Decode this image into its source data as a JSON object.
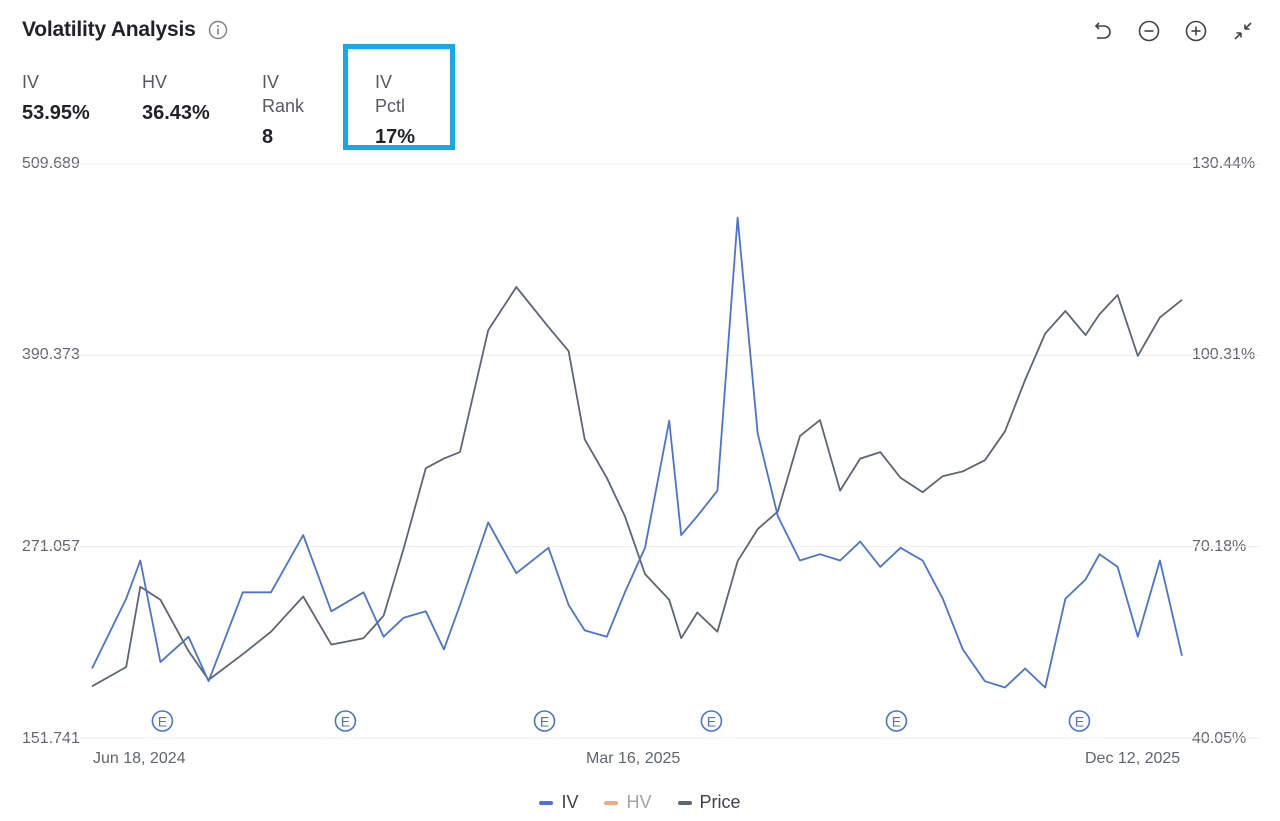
{
  "header": {
    "title": "Volatility Analysis",
    "info_icon": "info-icon",
    "tools": [
      {
        "icon": "undo-icon"
      },
      {
        "icon": "zoom-out-icon"
      },
      {
        "icon": "zoom-in-icon"
      },
      {
        "icon": "collapse-icon"
      }
    ]
  },
  "stats": [
    {
      "label": "IV",
      "value": "53.95%"
    },
    {
      "label": "HV",
      "value": "36.43%"
    },
    {
      "label": "IV Rank",
      "value": "8"
    },
    {
      "label": "IV Pctl",
      "value": "17%"
    }
  ],
  "colors": {
    "iv": "#4a72d9",
    "hv": "#f2a97e",
    "price": "#5d6675",
    "grid": "#ececec",
    "highlight": "#17a8e8"
  },
  "chart_data": {
    "type": "line",
    "left_axis": {
      "name": "Price",
      "ticks": [
        "509.689",
        "390.373",
        "271.057",
        "151.741"
      ],
      "range": [
        151.741,
        509.689
      ]
    },
    "right_axis": {
      "name": "IV",
      "ticks": [
        "130.44%",
        "100.31%",
        "70.18%",
        "40.05%"
      ],
      "range": [
        40.05,
        130.44
      ]
    },
    "x_ticks": [
      "Jun 18, 2024",
      "Mar 16, 2025",
      "Dec 12, 2025"
    ],
    "x_range": [
      "2024-06-18",
      "2025-12-12"
    ],
    "earnings_marker": "E",
    "earnings_dates": [
      "2024-07-23",
      "2024-10-22",
      "2025-01-29",
      "2025-04-22",
      "2025-07-23",
      "2025-10-22"
    ],
    "legend": [
      {
        "name": "IV",
        "color": "#4a72d9",
        "active": true
      },
      {
        "name": "HV",
        "color": "#f2a97e",
        "active": false
      },
      {
        "name": "Price",
        "color": "#5d6675",
        "active": true
      }
    ],
    "series": [
      {
        "name": "Price",
        "axis": "left",
        "x": [
          "2024-06-18",
          "2024-07-05",
          "2024-07-12",
          "2024-07-22",
          "2024-08-05",
          "2024-08-15",
          "2024-09-01",
          "2024-09-15",
          "2024-10-01",
          "2024-10-15",
          "2024-10-31",
          "2024-11-10",
          "2024-11-20",
          "2024-12-01",
          "2024-12-10",
          "2024-12-18",
          "2025-01-01",
          "2025-01-15",
          "2025-01-31",
          "2025-02-10",
          "2025-02-18",
          "2025-03-01",
          "2025-03-10",
          "2025-03-20",
          "2025-04-01",
          "2025-04-07",
          "2025-04-15",
          "2025-04-25",
          "2025-05-05",
          "2025-05-15",
          "2025-05-25",
          "2025-06-05",
          "2025-06-15",
          "2025-06-25",
          "2025-07-05",
          "2025-07-15",
          "2025-07-25",
          "2025-08-05",
          "2025-08-15",
          "2025-08-25",
          "2025-09-05",
          "2025-09-15",
          "2025-09-25",
          "2025-10-05",
          "2025-10-15",
          "2025-10-25",
          "2025-11-01",
          "2025-11-10",
          "2025-11-20",
          "2025-12-01",
          "2025-12-12"
        ],
        "values": [
          184,
          196,
          246,
          238,
          206,
          188,
          204,
          218,
          240,
          210,
          214,
          228,
          270,
          320,
          326,
          330,
          406,
          433,
          408,
          393,
          338,
          314,
          290,
          254,
          238,
          214,
          230,
          218,
          262,
          282,
          293,
          340,
          350,
          306,
          326,
          330,
          314,
          305,
          315,
          318,
          325,
          343,
          375,
          404,
          418,
          403,
          416,
          428,
          390,
          414,
          425
        ]
      },
      {
        "name": "IV",
        "axis": "right",
        "x": [
          "2024-06-18",
          "2024-07-05",
          "2024-07-12",
          "2024-07-22",
          "2024-08-05",
          "2024-08-15",
          "2024-09-01",
          "2024-09-15",
          "2024-10-01",
          "2024-10-15",
          "2024-10-31",
          "2024-11-10",
          "2024-11-20",
          "2024-12-01",
          "2024-12-10",
          "2024-12-18",
          "2025-01-01",
          "2025-01-15",
          "2025-01-31",
          "2025-02-10",
          "2025-02-18",
          "2025-03-01",
          "2025-03-10",
          "2025-03-20",
          "2025-04-01",
          "2025-04-07",
          "2025-04-15",
          "2025-04-25",
          "2025-05-05",
          "2025-05-15",
          "2025-05-25",
          "2025-06-05",
          "2025-06-15",
          "2025-06-25",
          "2025-07-05",
          "2025-07-15",
          "2025-07-25",
          "2025-08-05",
          "2025-08-15",
          "2025-08-25",
          "2025-09-05",
          "2025-09-15",
          "2025-09-25",
          "2025-10-05",
          "2025-10-15",
          "2025-10-25",
          "2025-11-01",
          "2025-11-10",
          "2025-11-20",
          "2025-12-01",
          "2025-12-12"
        ],
        "values": [
          51,
          62,
          68,
          52,
          56,
          49,
          63,
          63,
          72,
          60,
          63,
          56,
          59,
          60,
          54,
          61,
          74,
          66,
          70,
          61,
          57,
          56,
          63,
          70,
          90,
          72,
          75,
          79,
          122,
          88,
          75,
          68,
          69,
          68,
          71,
          67,
          70,
          68,
          62,
          54,
          49,
          48,
          51,
          48,
          62,
          65,
          69,
          67,
          56,
          68,
          53
        ]
      }
    ]
  },
  "note_hv_hidden": ""
}
